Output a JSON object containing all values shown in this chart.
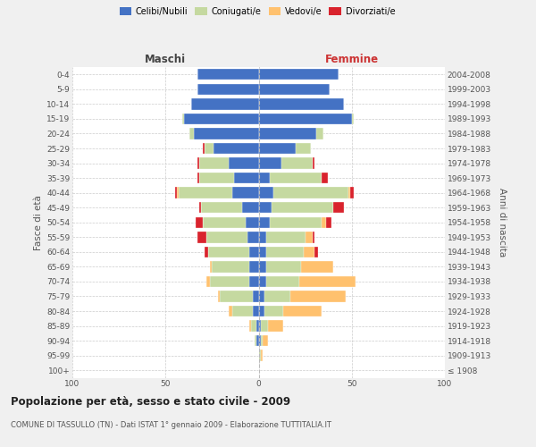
{
  "age_groups": [
    "0-4",
    "5-9",
    "10-14",
    "15-19",
    "20-24",
    "25-29",
    "30-34",
    "35-39",
    "40-44",
    "45-49",
    "50-54",
    "55-59",
    "60-64",
    "65-69",
    "70-74",
    "75-79",
    "80-84",
    "85-89",
    "90-94",
    "95-99",
    "100+"
  ],
  "birth_years": [
    "2004-2008",
    "1999-2003",
    "1994-1998",
    "1989-1993",
    "1984-1988",
    "1979-1983",
    "1974-1978",
    "1969-1973",
    "1964-1968",
    "1959-1963",
    "1954-1958",
    "1949-1953",
    "1944-1948",
    "1939-1943",
    "1934-1938",
    "1929-1933",
    "1924-1928",
    "1919-1923",
    "1914-1918",
    "1909-1913",
    "≤ 1908"
  ],
  "maschi_celibi": [
    33,
    33,
    36,
    40,
    35,
    24,
    16,
    13,
    14,
    9,
    7,
    6,
    5,
    5,
    5,
    3,
    3,
    1,
    1,
    0,
    0
  ],
  "maschi_coniugati": [
    0,
    0,
    0,
    1,
    2,
    5,
    16,
    19,
    29,
    22,
    23,
    22,
    22,
    20,
    21,
    18,
    11,
    3,
    1,
    0,
    0
  ],
  "maschi_vedovi": [
    0,
    0,
    0,
    0,
    0,
    0,
    0,
    0,
    1,
    0,
    0,
    0,
    0,
    1,
    2,
    1,
    2,
    1,
    0,
    0,
    0
  ],
  "maschi_divorziati": [
    0,
    0,
    0,
    0,
    0,
    1,
    1,
    1,
    1,
    1,
    4,
    5,
    2,
    0,
    0,
    0,
    0,
    0,
    0,
    0,
    0
  ],
  "femmine_nubili": [
    43,
    38,
    46,
    50,
    31,
    20,
    12,
    6,
    8,
    7,
    6,
    4,
    4,
    4,
    4,
    3,
    3,
    1,
    1,
    0,
    0
  ],
  "femmine_coniugate": [
    0,
    0,
    0,
    1,
    4,
    8,
    17,
    28,
    40,
    33,
    28,
    21,
    20,
    19,
    18,
    14,
    10,
    4,
    1,
    1,
    0
  ],
  "femmine_vedove": [
    0,
    0,
    0,
    0,
    0,
    0,
    0,
    0,
    1,
    0,
    2,
    4,
    6,
    17,
    30,
    30,
    21,
    8,
    3,
    1,
    0
  ],
  "femmine_divorziate": [
    0,
    0,
    0,
    0,
    0,
    0,
    1,
    3,
    2,
    6,
    3,
    1,
    2,
    0,
    0,
    0,
    0,
    0,
    0,
    0,
    0
  ],
  "color_celibi": "#4472c4",
  "color_coniugati": "#c5d9a0",
  "color_vedovi": "#ffc16e",
  "color_divorziati": "#d9232d",
  "xlim": 100,
  "title": "Popolazione per età, sesso e stato civile - 2009",
  "subtitle": "COMUNE DI TASSULLO (TN) - Dati ISTAT 1° gennaio 2009 - Elaborazione TUTTITALIA.IT",
  "ylabel_left": "Fasce di età",
  "ylabel_right": "Anni di nascita",
  "label_maschi": "Maschi",
  "label_femmine": "Femmine",
  "legend_celibi": "Celibi/Nubili",
  "legend_coniugati": "Coniugati/e",
  "legend_vedovi": "Vedovi/e",
  "legend_divorziati": "Divorziati/e",
  "bg_color": "#f0f0f0",
  "plot_bg": "#ffffff"
}
